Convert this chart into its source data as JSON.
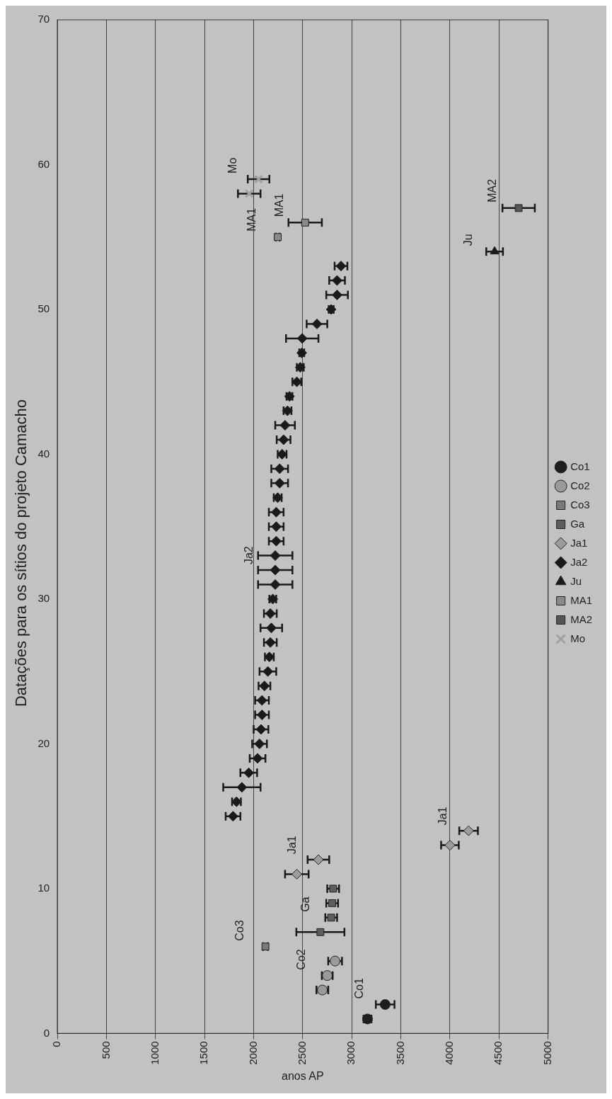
{
  "chart_data": {
    "type": "scatter",
    "title": "Datações para os sítios do projeto Camacho",
    "xlabel": "anos AP",
    "xlim": [
      0,
      5000
    ],
    "xticks": [
      0,
      500,
      1000,
      1500,
      2000,
      2500,
      3000,
      3500,
      4000,
      4500,
      5000
    ],
    "ylim": [
      0,
      70
    ],
    "yticks": [
      0,
      10,
      20,
      30,
      40,
      50,
      60,
      70
    ],
    "grid": "x",
    "legend": "right",
    "series": [
      {
        "name": "Co1",
        "color": "#1e1e1e",
        "marker": "circle",
        "x": [
          3160,
          3340
        ],
        "values": [
          1,
          2
        ],
        "xerrors": [
          40,
          95
        ]
      },
      {
        "name": "Co2",
        "color": "#9a9a9a",
        "marker": "circle",
        "x": [
          2700,
          2750,
          2830
        ],
        "values": [
          3,
          4,
          5
        ],
        "xerrors": [
          60,
          55,
          70
        ]
      },
      {
        "name": "Co3",
        "color": "#7a7a7a",
        "marker": "square",
        "x": [
          2120
        ],
        "values": [
          6
        ],
        "xerrors": [
          25
        ]
      },
      {
        "name": "Ga",
        "color": "#5e5e5e",
        "marker": "square",
        "x": [
          2680,
          2790,
          2800,
          2810
        ],
        "values": [
          7,
          8,
          9,
          10
        ],
        "xerrors": [
          245,
          60,
          60,
          60
        ]
      },
      {
        "name": "Ja1",
        "color": "#9c9c9c",
        "marker": "diamond",
        "x": [
          2440,
          2660,
          4000,
          4190
        ],
        "values": [
          11,
          12,
          13,
          14
        ],
        "xerrors": [
          120,
          110,
          90,
          95
        ]
      },
      {
        "name": "Ja2",
        "color": "#1a1a1a",
        "marker": "diamond",
        "x": [
          1790,
          1825,
          1880,
          1950,
          2040,
          2060,
          2075,
          2085,
          2085,
          2110,
          2145,
          2160,
          2170,
          2180,
          2170,
          2195,
          2220,
          2220,
          2220,
          2230,
          2230,
          2230,
          2245,
          2265,
          2265,
          2290,
          2305,
          2320,
          2345,
          2365,
          2440,
          2475,
          2490,
          2495,
          2645,
          2790,
          2850,
          2850,
          2890
        ],
        "values": [
          15,
          16,
          17,
          18,
          19,
          20,
          21,
          22,
          23,
          24,
          25,
          26,
          27,
          28,
          29,
          30,
          31,
          32,
          33,
          34,
          35,
          36,
          37,
          38,
          39,
          40,
          41,
          42,
          43,
          44,
          45,
          46,
          47,
          48,
          49,
          50,
          51,
          52,
          53
        ],
        "xerrors": [
          75,
          45,
          190,
          85,
          80,
          75,
          75,
          70,
          70,
          60,
          85,
          45,
          65,
          110,
          65,
          35,
          175,
          175,
          175,
          75,
          75,
          75,
          40,
          85,
          85,
          45,
          70,
          100,
          40,
          30,
          45,
          35,
          25,
          165,
          105,
          25,
          110,
          80,
          65
        ]
      },
      {
        "name": "Ju",
        "color": "#1a1a1a",
        "marker": "triangle",
        "x": [
          4455
        ],
        "values": [
          54
        ],
        "xerrors": [
          85
        ]
      },
      {
        "name": "MA1",
        "color": "#8a8a8a",
        "marker": "square",
        "x": [
          2245,
          2525
        ],
        "values": [
          55,
          56
        ],
        "xerrors": [
          20,
          170
        ]
      },
      {
        "name": "MA2",
        "color": "#555555",
        "marker": "square",
        "x": [
          4700
        ],
        "values": [
          57
        ],
        "xerrors": [
          165
        ]
      },
      {
        "name": "Mo",
        "color": "#a0a0a0",
        "marker": "cross",
        "x": [
          1955,
          2050
        ],
        "values": [
          58,
          59
        ],
        "xerrors": [
          115,
          110
        ]
      }
    ],
    "annotations": [
      {
        "text": "Co1",
        "x": 3340,
        "y": 2
      },
      {
        "text": "Co2",
        "x": 2750,
        "y": 4
      },
      {
        "text": "Co3",
        "x": 2120,
        "y": 6
      },
      {
        "text": "Ga",
        "x": 2790,
        "y": 8
      },
      {
        "text": "Ja1",
        "x": 2660,
        "y": 12
      },
      {
        "text": "Ja1",
        "x": 4190,
        "y": 14
      },
      {
        "text": "Ja2",
        "x": 2220,
        "y": 32
      },
      {
        "text": "Ju",
        "x": 4455,
        "y": 54
      },
      {
        "text": "MA1",
        "x": 2245,
        "y": 55
      },
      {
        "text": "MA1",
        "x": 2525,
        "y": 56
      },
      {
        "text": "MA2",
        "x": 4700,
        "y": 57
      },
      {
        "text": "Mo",
        "x": 2050,
        "y": 59
      }
    ]
  }
}
